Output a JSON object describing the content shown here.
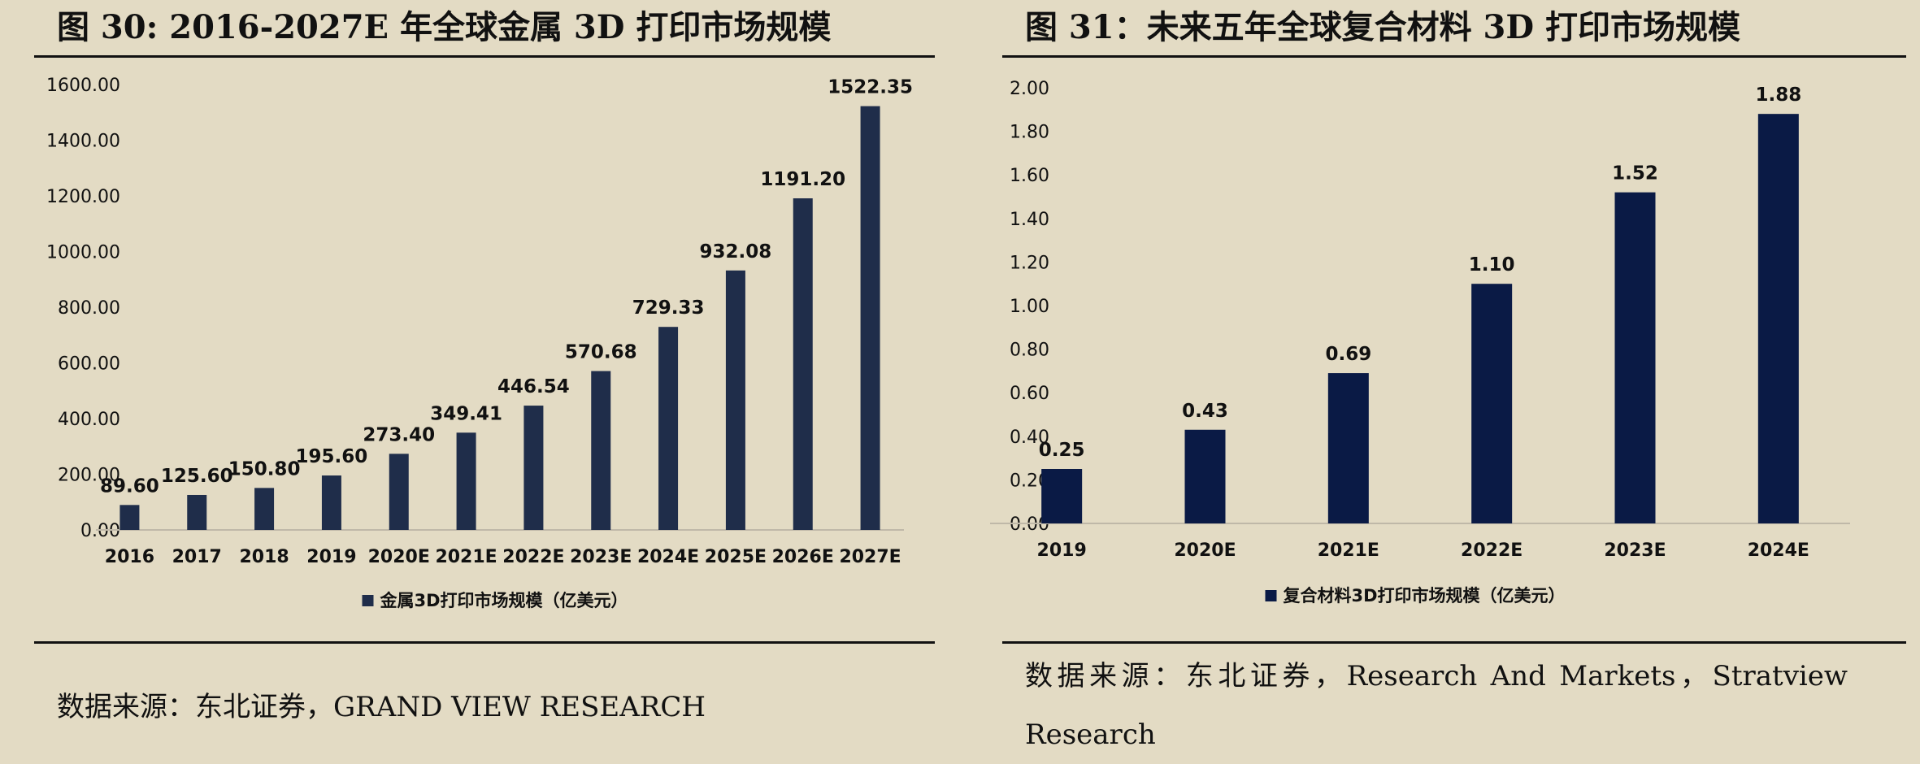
{
  "left_figure": {
    "title": "图  30:  2016-2027E 年全球金属 3D 打印市场规模",
    "source": "数据来源：东北证券，GRAND VIEW RESEARCH"
  },
  "right_figure": {
    "title": "图  31：未来五年全球复合材料 3D 打印市场规模",
    "source": "数据来源：东北证券，Research And Markets，Stratview Research"
  },
  "colors": {
    "background": "#E3DBC4",
    "bar_left": "#1F2D4A",
    "bar_right": "#0A1A45",
    "axis": "#BFB8A8",
    "text": "#111111"
  },
  "chart_data": [
    {
      "type": "bar",
      "title": "2016-2027E 年全球金属 3D 打印市场规模",
      "categories": [
        "2016",
        "2017",
        "2018",
        "2019",
        "2020E",
        "2021E",
        "2022E",
        "2023E",
        "2024E",
        "2025E",
        "2026E",
        "2027E"
      ],
      "series": [
        {
          "name": "金属3D打印市场规模（亿美元）",
          "values": [
            89.6,
            125.6,
            150.8,
            195.6,
            273.4,
            349.41,
            446.54,
            570.68,
            729.33,
            932.08,
            1191.2,
            1522.35
          ],
          "labels": [
            "89.60",
            "125.60",
            "150.80",
            "195.60",
            "273.40",
            "349.41",
            "446.54",
            "570.68",
            "729.33",
            "932.08",
            "1191.20",
            "1522.35"
          ]
        }
      ],
      "ylim": [
        0,
        1600
      ],
      "yticks": [
        "0.00",
        "200.00",
        "400.00",
        "600.00",
        "800.00",
        "1000.00",
        "1200.00",
        "1400.00",
        "1600.00"
      ],
      "xlabel": "",
      "ylabel": "",
      "legend": "bottom-center",
      "grid": false
    },
    {
      "type": "bar",
      "title": "未来五年全球复合材料 3D 打印市场规模",
      "categories": [
        "2019",
        "2020E",
        "2021E",
        "2022E",
        "2023E",
        "2024E"
      ],
      "series": [
        {
          "name": "复合材料3D打印市场规模（亿美元）",
          "values": [
            0.25,
            0.43,
            0.69,
            1.1,
            1.52,
            1.88
          ],
          "labels": [
            "0.25",
            "0.43",
            "0.69",
            "1.10",
            "1.52",
            "1.88"
          ]
        }
      ],
      "ylim": [
        0,
        2.0
      ],
      "yticks": [
        "0.00",
        "0.20",
        "0.40",
        "0.60",
        "0.80",
        "1.00",
        "1.20",
        "1.40",
        "1.60",
        "1.80",
        "2.00"
      ],
      "xlabel": "",
      "ylabel": "",
      "legend": "bottom-center",
      "grid": false
    }
  ]
}
